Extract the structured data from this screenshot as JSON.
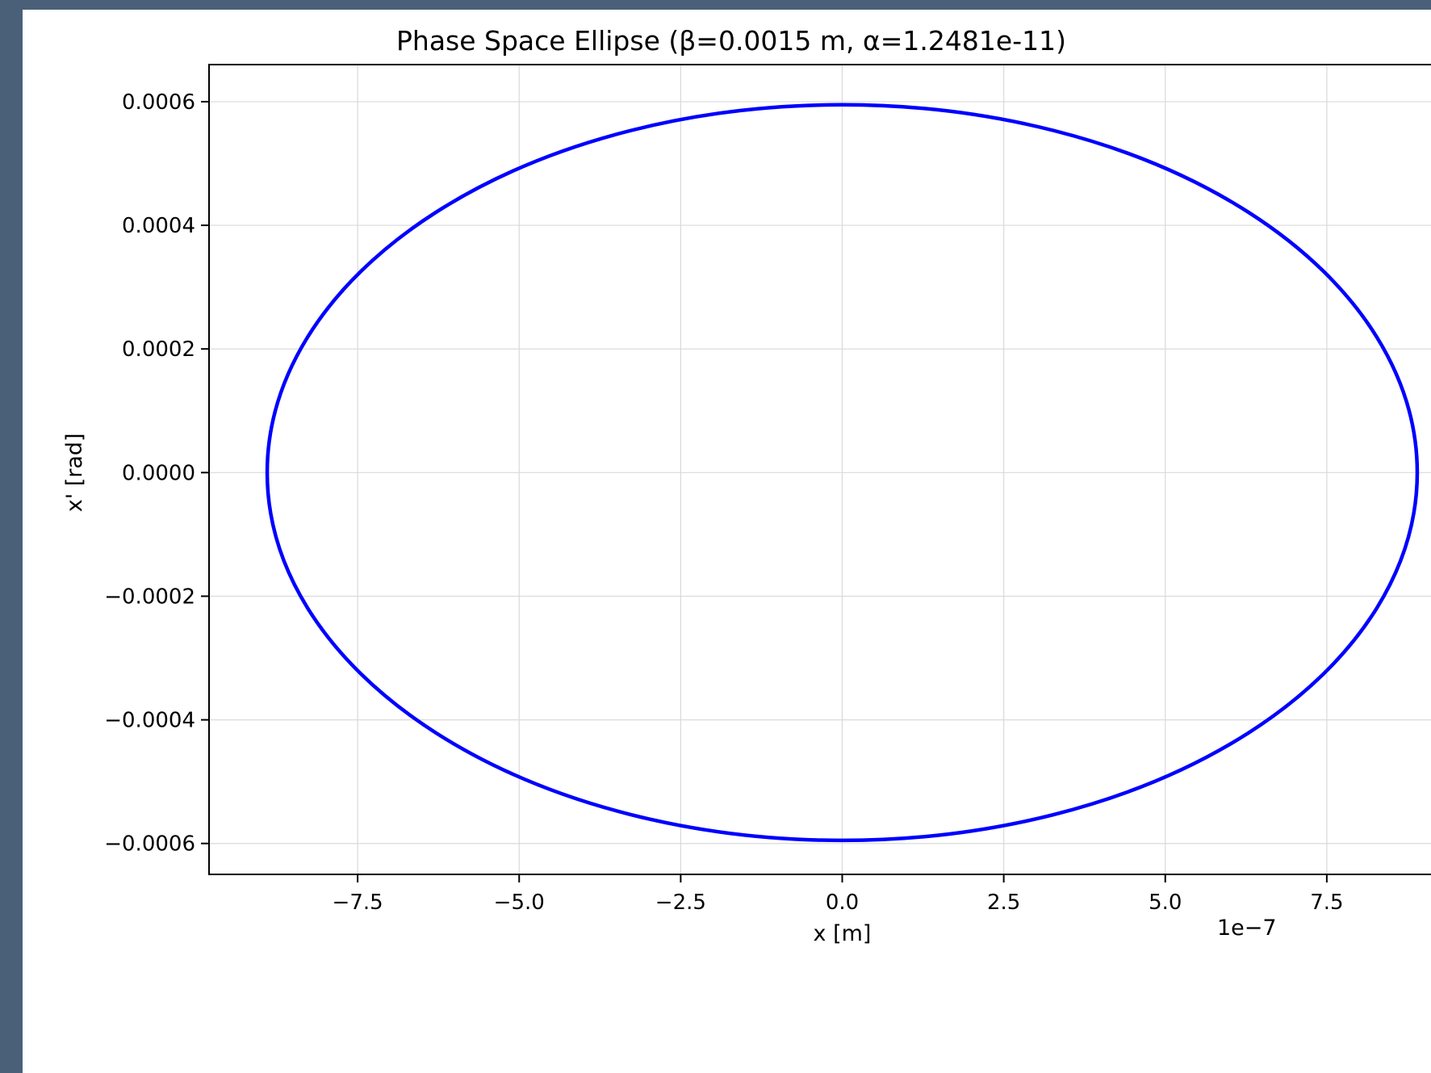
{
  "chart_data": {
    "type": "line",
    "title": "Phase Space Ellipse (β=0.0015 m, α=1.2481e-11)",
    "xlabel": "x [m]",
    "ylabel": "x' [rad]",
    "x_offset_label": "1e−7",
    "x_scale": 1e-07,
    "xlim": [
      -9.8,
      9.8
    ],
    "ylim": [
      -0.00065,
      0.00066
    ],
    "x_ticks": [
      -7.5,
      -5.0,
      -2.5,
      0.0,
      2.5,
      5.0,
      7.5
    ],
    "x_tick_labels": [
      "−7.5",
      "−5.0",
      "−2.5",
      "0.0",
      "2.5",
      "5.0",
      "7.5"
    ],
    "y_ticks": [
      0.0006,
      0.0004,
      0.0002,
      0.0,
      -0.0002,
      -0.0004,
      -0.0006
    ],
    "y_tick_labels": [
      "0.0006",
      "0.0004",
      "0.0002",
      "0.0000",
      "−0.0002",
      "−0.0004",
      "−0.0006"
    ],
    "grid": true,
    "series": [
      {
        "shape": "ellipse",
        "center": [
          0.0,
          0.0
        ],
        "x_semi_axis": 8.9,
        "y_semi_axis": 0.000595,
        "color": "#0000ff"
      }
    ]
  }
}
